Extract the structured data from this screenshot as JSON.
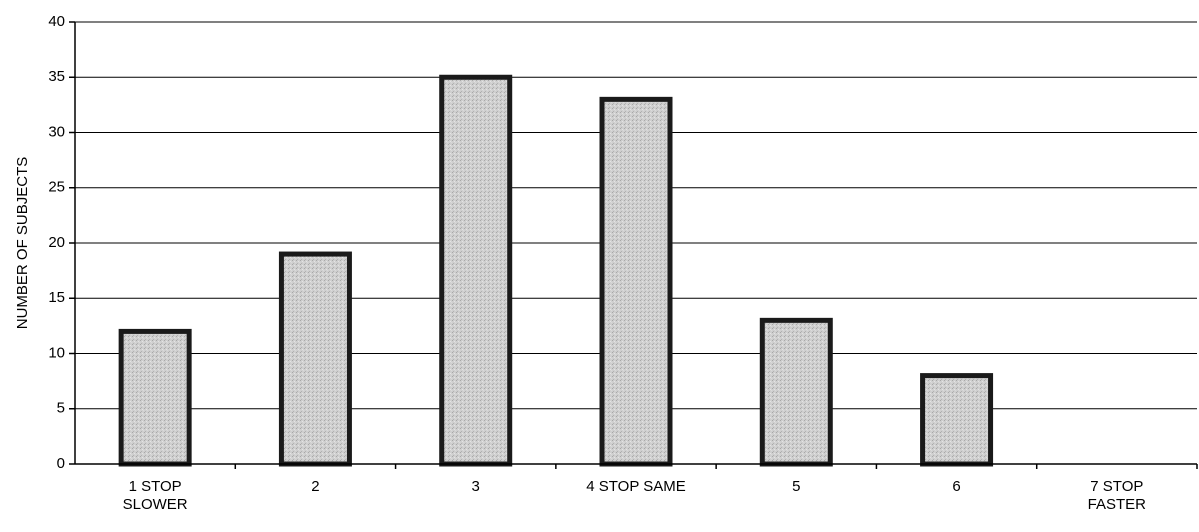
{
  "chart_data": {
    "type": "bar",
    "categories": [
      [
        "1 STOP",
        "SLOWER"
      ],
      [
        "2"
      ],
      [
        "3"
      ],
      [
        "4 STOP SAME"
      ],
      [
        "5"
      ],
      [
        "6"
      ],
      [
        "7 STOP",
        "FASTER"
      ]
    ],
    "values": [
      12,
      19,
      35,
      33,
      13,
      8,
      0
    ],
    "ylabel": "NUMBER OF SUBJECTS",
    "xlabel": "",
    "ylim": [
      0,
      40
    ],
    "yticks": [
      "0",
      "5",
      "10",
      "15",
      "20",
      "25",
      "30",
      "35",
      "40"
    ],
    "grid": true,
    "legend": "none",
    "colors": {
      "bar_fill": "#c9c9c9",
      "bar_stroke": "#1a1a1a",
      "grid": "#000000"
    }
  }
}
